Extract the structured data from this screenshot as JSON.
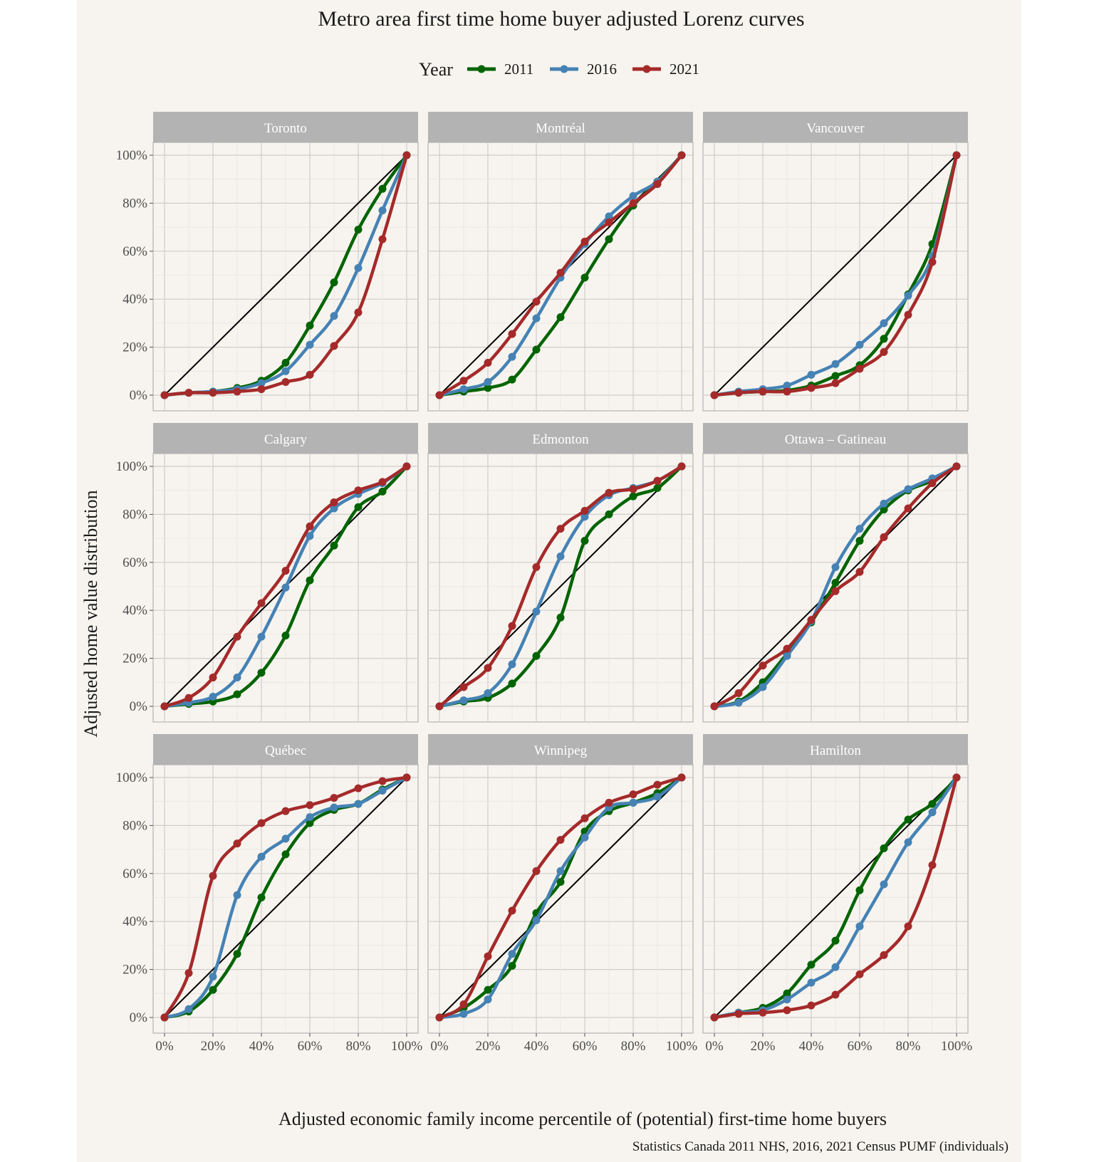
{
  "chart_data": {
    "type": "line",
    "title": "Metro area first time home buyer adjusted Lorenz curves",
    "xlabel": "Adjusted economic family income percentile of (potential) first-time home buyers",
    "ylabel": "Adjusted home value distribution",
    "caption": "Statistics Canada 2011 NHS, 2016, 2021 Census PUMF (individuals)",
    "legend": {
      "title": "Year",
      "position": "top",
      "entries": [
        {
          "name": "2011",
          "color": "#006400"
        },
        {
          "name": "2016",
          "color": "#4682b4"
        },
        {
          "name": "2021",
          "color": "#a52a2a"
        }
      ]
    },
    "x": [
      0,
      10,
      20,
      30,
      40,
      50,
      60,
      70,
      80,
      90,
      100
    ],
    "xlim": [
      0,
      100
    ],
    "ylim": [
      0,
      100
    ],
    "x_ticks": [
      "0%",
      "20%",
      "40%",
      "60%",
      "80%",
      "100%"
    ],
    "y_ticks": [
      "0%",
      "20%",
      "40%",
      "60%",
      "80%",
      "100%"
    ],
    "grid": true,
    "reference_line": "equality diagonal",
    "facets": [
      {
        "name": "Toronto",
        "series": [
          {
            "name": "2011",
            "values": [
              0,
              1,
              1.5,
              3,
              6,
              13.5,
              29,
              47,
              69,
              86,
              100
            ]
          },
          {
            "name": "2016",
            "values": [
              0,
              1,
              1.5,
              2.5,
              5,
              10,
              21,
              33,
              53,
              77,
              100
            ]
          },
          {
            "name": "2021",
            "values": [
              0,
              1,
              1,
              1.5,
              2.5,
              5.5,
              8.5,
              20.5,
              34.5,
              65,
              100
            ]
          }
        ]
      },
      {
        "name": "Montréal",
        "series": [
          {
            "name": "2011",
            "values": [
              0,
              1.5,
              3,
              6.5,
              19,
              32.5,
              49,
              65,
              79,
              89,
              100
            ]
          },
          {
            "name": "2016",
            "values": [
              0,
              2.5,
              5.5,
              16,
              32,
              49,
              63,
              74.5,
              83,
              89,
              100
            ]
          },
          {
            "name": "2021",
            "values": [
              0,
              6,
              13.5,
              25.5,
              39,
              51,
              64,
              72,
              80,
              88,
              100
            ]
          }
        ]
      },
      {
        "name": "Vancouver",
        "series": [
          {
            "name": "2011",
            "values": [
              0,
              1,
              1.5,
              2,
              4,
              8,
              12.5,
              23.5,
              42,
              63,
              100
            ]
          },
          {
            "name": "2016",
            "values": [
              0,
              1.5,
              2.5,
              4,
              8.5,
              13,
              21,
              30,
              41.5,
              58,
              100
            ]
          },
          {
            "name": "2021",
            "values": [
              0,
              1,
              1.5,
              1.5,
              3,
              5,
              11,
              18,
              33.5,
              55.5,
              100
            ]
          }
        ]
      },
      {
        "name": "Calgary",
        "series": [
          {
            "name": "2011",
            "values": [
              0,
              1,
              2,
              5,
              14,
              29.5,
              52.5,
              67,
              83,
              89.5,
              100
            ]
          },
          {
            "name": "2016",
            "values": [
              0,
              1.5,
              4,
              12,
              29,
              49.5,
              71,
              82.5,
              88.5,
              93,
              100
            ]
          },
          {
            "name": "2021",
            "values": [
              0,
              3.5,
              12,
              29,
              43,
              56.5,
              75,
              85,
              90,
              93.5,
              100
            ]
          }
        ]
      },
      {
        "name": "Edmonton",
        "series": [
          {
            "name": "2011",
            "values": [
              0,
              2,
              3.5,
              9.5,
              21,
              37,
              69,
              80,
              87.5,
              91,
              100
            ]
          },
          {
            "name": "2016",
            "values": [
              0,
              2.5,
              5.5,
              17.5,
              39.5,
              62.5,
              79,
              88,
              91,
              94,
              100
            ]
          },
          {
            "name": "2021",
            "values": [
              0,
              8,
              16,
              33.5,
              58,
              74,
              81.5,
              89,
              90.5,
              94,
              100
            ]
          }
        ]
      },
      {
        "name": "Ottawa – Gatineau",
        "series": [
          {
            "name": "2011",
            "values": [
              0,
              2,
              10,
              22,
              35,
              51.5,
              69,
              82,
              90,
              94,
              100
            ]
          },
          {
            "name": "2016",
            "values": [
              0,
              1.5,
              8,
              21,
              35.5,
              58,
              74,
              84.5,
              90.5,
              95,
              100
            ]
          },
          {
            "name": "2021",
            "values": [
              0,
              5.5,
              17,
              24,
              36,
              48,
              56,
              70.5,
              82.5,
              93,
              100
            ]
          }
        ]
      },
      {
        "name": "Québec",
        "series": [
          {
            "name": "2011",
            "values": [
              0,
              2.5,
              11.5,
              26.5,
              50,
              68,
              81,
              86.5,
              89,
              95,
              100
            ]
          },
          {
            "name": "2016",
            "values": [
              0,
              3.5,
              17,
              51,
              67,
              74.5,
              83.5,
              87.5,
              89,
              94.5,
              100
            ]
          },
          {
            "name": "2021",
            "values": [
              0,
              18.5,
              59,
              72.5,
              81,
              86,
              88.5,
              91.5,
              95.5,
              98.5,
              100
            ]
          }
        ]
      },
      {
        "name": "Winnipeg",
        "series": [
          {
            "name": "2011",
            "values": [
              0,
              4,
              11.5,
              21.5,
              43.5,
              56.5,
              77.5,
              86,
              89.5,
              93.5,
              100
            ]
          },
          {
            "name": "2016",
            "values": [
              0,
              1.5,
              7.5,
              26.5,
              40.5,
              61,
              75,
              87.5,
              89.5,
              92,
              100
            ]
          },
          {
            "name": "2021",
            "values": [
              0,
              5.5,
              25.5,
              44.5,
              61,
              74,
              83,
              89.5,
              93,
              97,
              100
            ]
          }
        ]
      },
      {
        "name": "Hamilton",
        "series": [
          {
            "name": "2011",
            "values": [
              0,
              2,
              4,
              10,
              22,
              32,
              53,
              70.5,
              82.5,
              89,
              100
            ]
          },
          {
            "name": "2016",
            "values": [
              0,
              2,
              3,
              7.5,
              14.5,
              21,
              38,
              55.5,
              73,
              85.5,
              100
            ]
          },
          {
            "name": "2021",
            "values": [
              0,
              1.5,
              2,
              3,
              5,
              9.5,
              18,
              26,
              38,
              63.5,
              100
            ]
          }
        ]
      }
    ]
  }
}
